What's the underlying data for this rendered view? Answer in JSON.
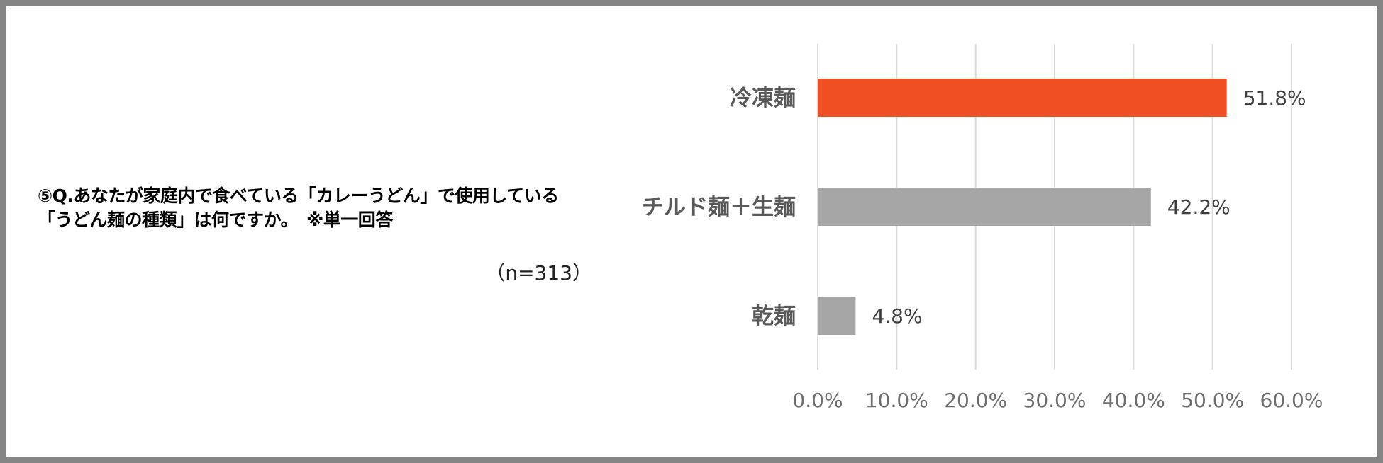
{
  "question": {
    "line1": "⑤Q.あなたが家庭内で食べている「カレーうどん」で使用している",
    "line2": "「うどん麺の種類」は何ですか。　※単一回答"
  },
  "sample_size": "（n=313）",
  "colors": {
    "highlight": "#F04E23",
    "default": "#A6A6A6",
    "grid": "#D9D9D9"
  },
  "chart_data": {
    "type": "bar",
    "orientation": "horizontal",
    "categories": [
      "冷凍麺",
      "チルド麺＋生麺",
      "乾麺"
    ],
    "values": [
      51.8,
      42.2,
      4.8
    ],
    "value_labels": [
      "51.8%",
      "42.2%",
      "4.8%"
    ],
    "bar_colors": [
      "#F04E23",
      "#A6A6A6",
      "#A6A6A6"
    ],
    "xlim": [
      0,
      60
    ],
    "xticks": [
      0,
      10,
      20,
      30,
      40,
      50,
      60
    ],
    "xtick_labels": [
      "0.0%",
      "10.0%",
      "20.0%",
      "30.0%",
      "40.0%",
      "50.0%",
      "60.0%"
    ],
    "grid": true,
    "legend": "none"
  }
}
